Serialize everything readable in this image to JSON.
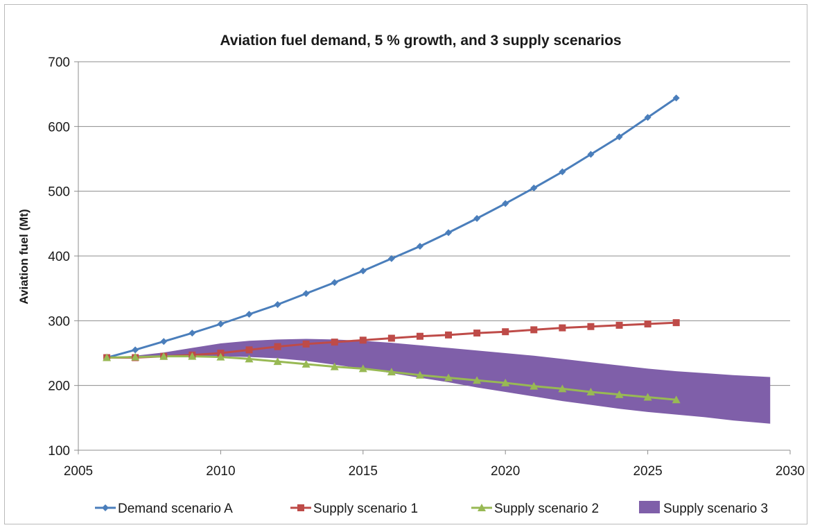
{
  "chart_data": {
    "type": "line",
    "title": "Aviation fuel demand, 5 % growth, and 3 supply scenarios",
    "xlabel": "",
    "ylabel": "Aviation fuel (Mt)",
    "xlim": [
      2005,
      2030
    ],
    "ylim": [
      100,
      700
    ],
    "xticks": [
      2005,
      2010,
      2015,
      2020,
      2025,
      2030
    ],
    "yticks": [
      100,
      200,
      300,
      400,
      500,
      600,
      700
    ],
    "grid": "horizontal",
    "legend_position": "bottom",
    "series": [
      {
        "name": "Demand scenario A",
        "kind": "line",
        "marker": "diamond",
        "color": "#4a7ebb",
        "x": [
          2006,
          2007,
          2008,
          2009,
          2010,
          2011,
          2012,
          2013,
          2014,
          2015,
          2016,
          2017,
          2018,
          2019,
          2020,
          2021,
          2022,
          2023,
          2024,
          2025,
          2026
        ],
        "values": [
          243,
          255,
          268,
          281,
          295,
          310,
          325,
          342,
          359,
          377,
          396,
          415,
          436,
          458,
          481,
          505,
          530,
          557,
          584,
          614,
          644
        ]
      },
      {
        "name": "Supply scenario 1",
        "kind": "line",
        "marker": "square",
        "color": "#be4b48",
        "x": [
          2006,
          2007,
          2008,
          2009,
          2010,
          2011,
          2012,
          2013,
          2014,
          2015,
          2016,
          2017,
          2018,
          2019,
          2020,
          2021,
          2022,
          2023,
          2024,
          2025,
          2026
        ],
        "values": [
          243,
          243,
          245,
          247,
          250,
          255,
          260,
          264,
          267,
          270,
          273,
          276,
          278,
          281,
          283,
          286,
          289,
          291,
          293,
          295,
          297
        ]
      },
      {
        "name": "Supply scenario 2",
        "kind": "line",
        "marker": "triangle",
        "color": "#98b954",
        "x": [
          2006,
          2007,
          2008,
          2009,
          2010,
          2011,
          2012,
          2013,
          2014,
          2015,
          2016,
          2017,
          2018,
          2019,
          2020,
          2021,
          2022,
          2023,
          2024,
          2025,
          2026
        ],
        "values": [
          243,
          244,
          245,
          245,
          244,
          241,
          237,
          233,
          229,
          226,
          221,
          216,
          212,
          208,
          204,
          199,
          195,
          190,
          186,
          182,
          178
        ]
      },
      {
        "name": "Supply scenario 3",
        "kind": "band",
        "color": "#7f5fa9",
        "x": [
          2006,
          2007,
          2008,
          2009,
          2010,
          2011,
          2012,
          2013,
          2014,
          2015,
          2016,
          2017,
          2018,
          2019,
          2020,
          2021,
          2022,
          2023,
          2024,
          2025,
          2026,
          2027,
          2028,
          2029.3
        ],
        "upper": [
          243,
          246,
          251,
          258,
          265,
          269,
          271,
          272,
          271,
          269,
          266,
          262,
          258,
          254,
          250,
          246,
          241,
          236,
          231,
          226,
          222,
          219,
          216,
          213
        ],
        "lower": [
          243,
          243,
          244,
          245,
          245,
          244,
          242,
          238,
          232,
          226,
          219,
          212,
          205,
          197,
          190,
          183,
          176,
          170,
          164,
          159,
          155,
          151,
          146,
          141
        ]
      }
    ]
  }
}
